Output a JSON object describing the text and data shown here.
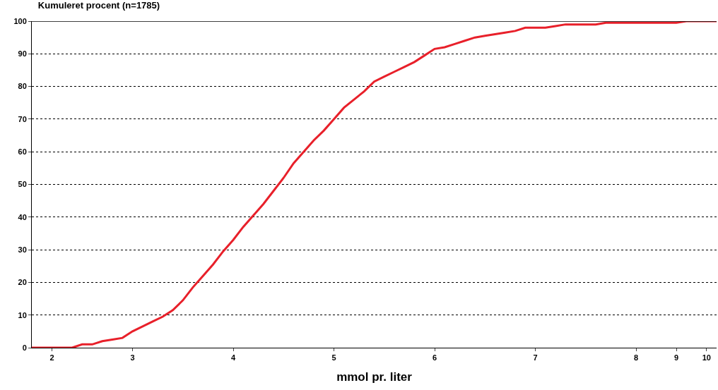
{
  "chart_data": {
    "type": "line",
    "title": "Kumuleret procent (n=1785)",
    "xlabel": "mmol pr. liter",
    "categories": [
      null,
      null,
      "2",
      null,
      null,
      null,
      null,
      null,
      null,
      null,
      "3",
      null,
      null,
      null,
      null,
      null,
      null,
      null,
      null,
      null,
      "4",
      null,
      null,
      null,
      null,
      null,
      null,
      null,
      null,
      null,
      "5",
      null,
      null,
      null,
      null,
      null,
      null,
      null,
      null,
      null,
      "6",
      null,
      null,
      null,
      null,
      null,
      null,
      null,
      null,
      null,
      "7",
      null,
      null,
      null,
      null,
      null,
      null,
      null,
      null,
      null,
      "8",
      null,
      null,
      null,
      "9",
      null,
      null,
      "10",
      null
    ],
    "series": [
      {
        "color": "#e8202a",
        "values": [
          0,
          0,
          0,
          0,
          0,
          1,
          1,
          2,
          2.5,
          3,
          5,
          6.5,
          8,
          9.5,
          11.5,
          14.5,
          18.5,
          22,
          25.5,
          29.5,
          33,
          37,
          40.5,
          44,
          48,
          52,
          56.5,
          60,
          63.5,
          66.5,
          70,
          73.5,
          76,
          78.5,
          81.5,
          83,
          84.5,
          86,
          87.5,
          89.5,
          91.5,
          92,
          93,
          94,
          95,
          95.5,
          96,
          96.5,
          97,
          98,
          98,
          98,
          98.5,
          99,
          99,
          99,
          99,
          99.5,
          99.5,
          99.5,
          99.5,
          99.5,
          99.5,
          99.5,
          99.5,
          100,
          100,
          100,
          100
        ]
      }
    ],
    "ylim": [
      0,
      100
    ],
    "yticks": [
      0,
      10,
      20,
      30,
      40,
      50,
      60,
      70,
      80,
      90,
      100
    ],
    "grid": "y",
    "line_style": "solid",
    "marker": "none",
    "legend": false
  }
}
